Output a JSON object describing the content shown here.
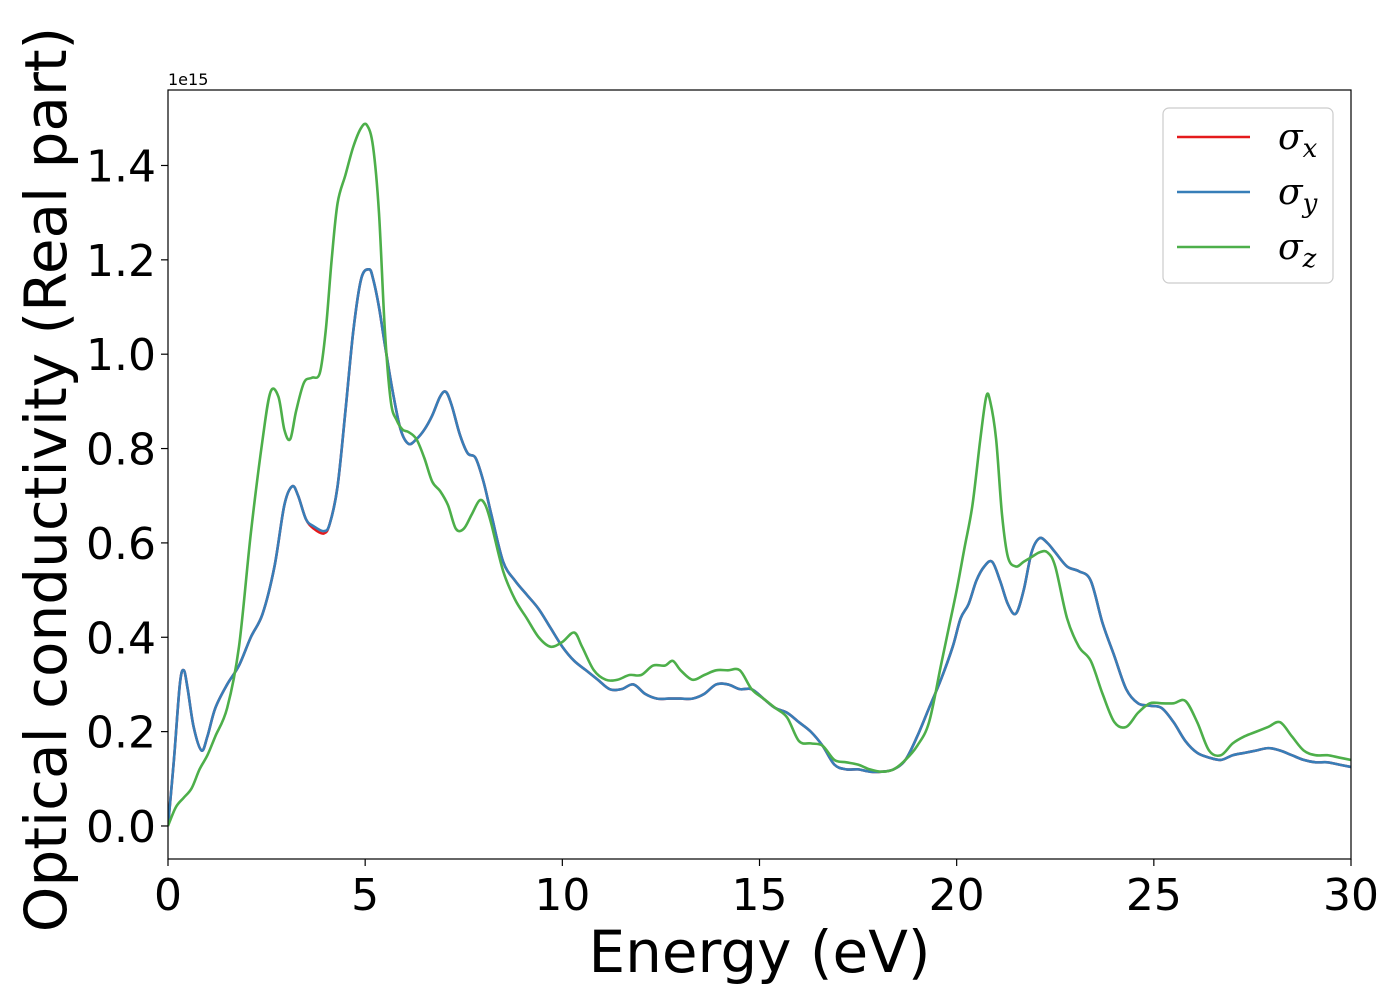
{
  "chart_data": {
    "type": "line",
    "title": "",
    "xlabel": "Energy (eV)",
    "ylabel": "Optical conductivity (Real part)",
    "y_offset_text": "1e15",
    "xlim": [
      0,
      30
    ],
    "ylim": [
      -0.07,
      1.56
    ],
    "x_ticks": [
      0,
      5,
      10,
      15,
      20,
      25,
      30
    ],
    "x_tick_labels": [
      "0",
      "5",
      "10",
      "15",
      "20",
      "25",
      "30"
    ],
    "y_ticks": [
      0.0,
      0.2,
      0.4,
      0.6,
      0.8,
      1.0,
      1.2,
      1.4
    ],
    "y_tick_labels": [
      "0.0",
      "0.2",
      "0.4",
      "0.6",
      "0.8",
      "1.0",
      "1.2",
      "1.4"
    ],
    "grid": false,
    "legend_position": "top-right",
    "series": [
      {
        "name_base": "σ",
        "name_sub": "x",
        "color": "#e41a1c",
        "x": [
          0,
          0.15,
          0.3,
          0.4,
          0.5,
          0.65,
          0.85,
          1.0,
          1.2,
          1.5,
          1.8,
          2.1,
          2.4,
          2.7,
          2.95,
          3.15,
          3.3,
          3.5,
          3.7,
          3.95,
          4.1,
          4.3,
          4.5,
          4.7,
          4.9,
          5.1,
          5.2,
          5.35,
          5.5,
          5.7,
          5.9,
          6.1,
          6.3,
          6.5,
          6.7,
          6.9,
          7.05,
          7.2,
          7.4,
          7.6,
          7.8,
          8.0,
          8.2,
          8.5,
          8.8,
          9.1,
          9.4,
          9.7,
          10.0,
          10.3,
          10.6,
          10.9,
          11.2,
          11.5,
          11.8,
          12.1,
          12.4,
          12.7,
          13.0,
          13.3,
          13.6,
          13.9,
          14.2,
          14.5,
          14.8,
          15.1,
          15.4,
          15.7,
          16.0,
          16.3,
          16.6,
          16.9,
          17.2,
          17.5,
          17.8,
          18.1,
          18.4,
          18.7,
          19.0,
          19.3,
          19.6,
          19.9,
          20.1,
          20.3,
          20.5,
          20.7,
          20.9,
          21.1,
          21.3,
          21.5,
          21.7,
          21.9,
          22.1,
          22.3,
          22.5,
          22.8,
          23.1,
          23.4,
          23.7,
          24.0,
          24.3,
          24.6,
          24.9,
          25.2,
          25.5,
          25.8,
          26.1,
          26.4,
          26.7,
          27.0,
          27.3,
          27.6,
          27.9,
          28.2,
          28.5,
          28.8,
          29.1,
          29.4,
          29.7,
          30.0
        ],
        "values": [
          0.0,
          0.14,
          0.3,
          0.33,
          0.29,
          0.21,
          0.16,
          0.19,
          0.25,
          0.3,
          0.34,
          0.4,
          0.45,
          0.55,
          0.68,
          0.72,
          0.7,
          0.65,
          0.63,
          0.62,
          0.64,
          0.72,
          0.88,
          1.05,
          1.16,
          1.18,
          1.16,
          1.1,
          1.02,
          0.92,
          0.84,
          0.81,
          0.82,
          0.84,
          0.87,
          0.91,
          0.92,
          0.89,
          0.83,
          0.79,
          0.78,
          0.73,
          0.66,
          0.56,
          0.52,
          0.49,
          0.46,
          0.42,
          0.38,
          0.35,
          0.33,
          0.31,
          0.29,
          0.29,
          0.3,
          0.28,
          0.27,
          0.27,
          0.27,
          0.27,
          0.28,
          0.3,
          0.3,
          0.29,
          0.29,
          0.27,
          0.25,
          0.24,
          0.22,
          0.2,
          0.17,
          0.13,
          0.12,
          0.12,
          0.115,
          0.115,
          0.12,
          0.14,
          0.19,
          0.25,
          0.31,
          0.38,
          0.44,
          0.47,
          0.52,
          0.55,
          0.56,
          0.52,
          0.47,
          0.45,
          0.5,
          0.58,
          0.61,
          0.6,
          0.58,
          0.55,
          0.54,
          0.52,
          0.43,
          0.36,
          0.29,
          0.26,
          0.255,
          0.25,
          0.22,
          0.18,
          0.155,
          0.145,
          0.14,
          0.15,
          0.155,
          0.16,
          0.165,
          0.16,
          0.15,
          0.14,
          0.135,
          0.135,
          0.13,
          0.125
        ]
      },
      {
        "name_base": "σ",
        "name_sub": "y",
        "color": "#377eb8",
        "x": [
          0,
          0.15,
          0.3,
          0.4,
          0.5,
          0.65,
          0.85,
          1.0,
          1.2,
          1.5,
          1.8,
          2.1,
          2.4,
          2.7,
          2.95,
          3.15,
          3.3,
          3.5,
          3.7,
          3.95,
          4.1,
          4.3,
          4.5,
          4.7,
          4.9,
          5.1,
          5.2,
          5.35,
          5.5,
          5.7,
          5.9,
          6.1,
          6.3,
          6.5,
          6.7,
          6.9,
          7.05,
          7.2,
          7.4,
          7.6,
          7.8,
          8.0,
          8.2,
          8.5,
          8.8,
          9.1,
          9.4,
          9.7,
          10.0,
          10.3,
          10.6,
          10.9,
          11.2,
          11.5,
          11.8,
          12.1,
          12.4,
          12.7,
          13.0,
          13.3,
          13.6,
          13.9,
          14.2,
          14.5,
          14.8,
          15.1,
          15.4,
          15.7,
          16.0,
          16.3,
          16.6,
          16.9,
          17.2,
          17.5,
          17.8,
          18.1,
          18.4,
          18.7,
          19.0,
          19.3,
          19.6,
          19.9,
          20.1,
          20.3,
          20.5,
          20.7,
          20.9,
          21.1,
          21.3,
          21.5,
          21.7,
          21.9,
          22.1,
          22.3,
          22.5,
          22.8,
          23.1,
          23.4,
          23.7,
          24.0,
          24.3,
          24.6,
          24.9,
          25.2,
          25.5,
          25.8,
          26.1,
          26.4,
          26.7,
          27.0,
          27.3,
          27.6,
          27.9,
          28.2,
          28.5,
          28.8,
          29.1,
          29.4,
          29.7,
          30.0
        ],
        "values": [
          0.0,
          0.14,
          0.3,
          0.33,
          0.29,
          0.21,
          0.16,
          0.19,
          0.25,
          0.3,
          0.34,
          0.4,
          0.45,
          0.55,
          0.68,
          0.72,
          0.7,
          0.65,
          0.635,
          0.625,
          0.64,
          0.72,
          0.88,
          1.05,
          1.16,
          1.18,
          1.16,
          1.1,
          1.02,
          0.92,
          0.84,
          0.81,
          0.82,
          0.84,
          0.87,
          0.91,
          0.92,
          0.89,
          0.83,
          0.79,
          0.78,
          0.73,
          0.66,
          0.56,
          0.52,
          0.49,
          0.46,
          0.42,
          0.38,
          0.35,
          0.33,
          0.31,
          0.29,
          0.29,
          0.3,
          0.28,
          0.27,
          0.27,
          0.27,
          0.27,
          0.28,
          0.3,
          0.3,
          0.29,
          0.29,
          0.27,
          0.25,
          0.24,
          0.22,
          0.2,
          0.17,
          0.13,
          0.12,
          0.12,
          0.115,
          0.115,
          0.12,
          0.14,
          0.19,
          0.25,
          0.31,
          0.38,
          0.44,
          0.47,
          0.52,
          0.55,
          0.56,
          0.52,
          0.47,
          0.45,
          0.5,
          0.58,
          0.61,
          0.6,
          0.58,
          0.55,
          0.54,
          0.52,
          0.43,
          0.36,
          0.29,
          0.26,
          0.255,
          0.25,
          0.22,
          0.18,
          0.155,
          0.145,
          0.14,
          0.15,
          0.155,
          0.16,
          0.165,
          0.16,
          0.15,
          0.14,
          0.135,
          0.135,
          0.13,
          0.125
        ]
      },
      {
        "name_base": "σ",
        "name_sub": "z",
        "color": "#4daf4a",
        "x": [
          0,
          0.2,
          0.4,
          0.6,
          0.8,
          1.0,
          1.2,
          1.5,
          1.8,
          2.1,
          2.4,
          2.6,
          2.8,
          2.95,
          3.1,
          3.25,
          3.45,
          3.65,
          3.85,
          4.0,
          4.15,
          4.3,
          4.5,
          4.7,
          4.9,
          5.05,
          5.2,
          5.35,
          5.5,
          5.65,
          5.8,
          5.95,
          6.1,
          6.3,
          6.5,
          6.7,
          6.9,
          7.1,
          7.3,
          7.5,
          7.7,
          7.9,
          8.05,
          8.2,
          8.5,
          8.8,
          9.1,
          9.4,
          9.7,
          10.0,
          10.3,
          10.5,
          10.8,
          11.1,
          11.4,
          11.7,
          12.0,
          12.3,
          12.6,
          12.8,
          13.0,
          13.3,
          13.6,
          13.9,
          14.2,
          14.5,
          14.8,
          15.1,
          15.4,
          15.7,
          16.0,
          16.3,
          16.6,
          16.9,
          17.2,
          17.5,
          17.8,
          18.1,
          18.4,
          18.7,
          19.0,
          19.3,
          19.6,
          19.8,
          20.0,
          20.2,
          20.4,
          20.6,
          20.75,
          20.85,
          21.0,
          21.15,
          21.3,
          21.5,
          21.7,
          21.9,
          22.1,
          22.3,
          22.5,
          22.8,
          23.1,
          23.4,
          23.7,
          24.0,
          24.3,
          24.6,
          24.9,
          25.2,
          25.5,
          25.8,
          26.1,
          26.4,
          26.7,
          27.0,
          27.3,
          27.6,
          27.9,
          28.2,
          28.5,
          28.8,
          29.1,
          29.4,
          29.7,
          30.0
        ],
        "values": [
          0.0,
          0.04,
          0.06,
          0.08,
          0.12,
          0.15,
          0.19,
          0.25,
          0.38,
          0.62,
          0.82,
          0.92,
          0.91,
          0.84,
          0.82,
          0.88,
          0.94,
          0.95,
          0.96,
          1.05,
          1.2,
          1.32,
          1.38,
          1.44,
          1.48,
          1.485,
          1.44,
          1.3,
          1.05,
          0.9,
          0.86,
          0.84,
          0.835,
          0.82,
          0.78,
          0.73,
          0.71,
          0.68,
          0.63,
          0.63,
          0.66,
          0.69,
          0.68,
          0.64,
          0.54,
          0.48,
          0.44,
          0.4,
          0.38,
          0.39,
          0.41,
          0.38,
          0.33,
          0.31,
          0.31,
          0.32,
          0.32,
          0.34,
          0.34,
          0.35,
          0.33,
          0.31,
          0.32,
          0.33,
          0.33,
          0.33,
          0.29,
          0.27,
          0.25,
          0.23,
          0.18,
          0.175,
          0.17,
          0.14,
          0.135,
          0.13,
          0.12,
          0.115,
          0.12,
          0.14,
          0.17,
          0.22,
          0.34,
          0.42,
          0.5,
          0.59,
          0.68,
          0.82,
          0.91,
          0.9,
          0.82,
          0.66,
          0.57,
          0.55,
          0.56,
          0.57,
          0.58,
          0.58,
          0.55,
          0.44,
          0.38,
          0.35,
          0.28,
          0.22,
          0.21,
          0.24,
          0.26,
          0.26,
          0.26,
          0.265,
          0.22,
          0.16,
          0.15,
          0.175,
          0.19,
          0.2,
          0.21,
          0.22,
          0.19,
          0.16,
          0.15,
          0.15,
          0.145,
          0.14
        ]
      }
    ]
  }
}
